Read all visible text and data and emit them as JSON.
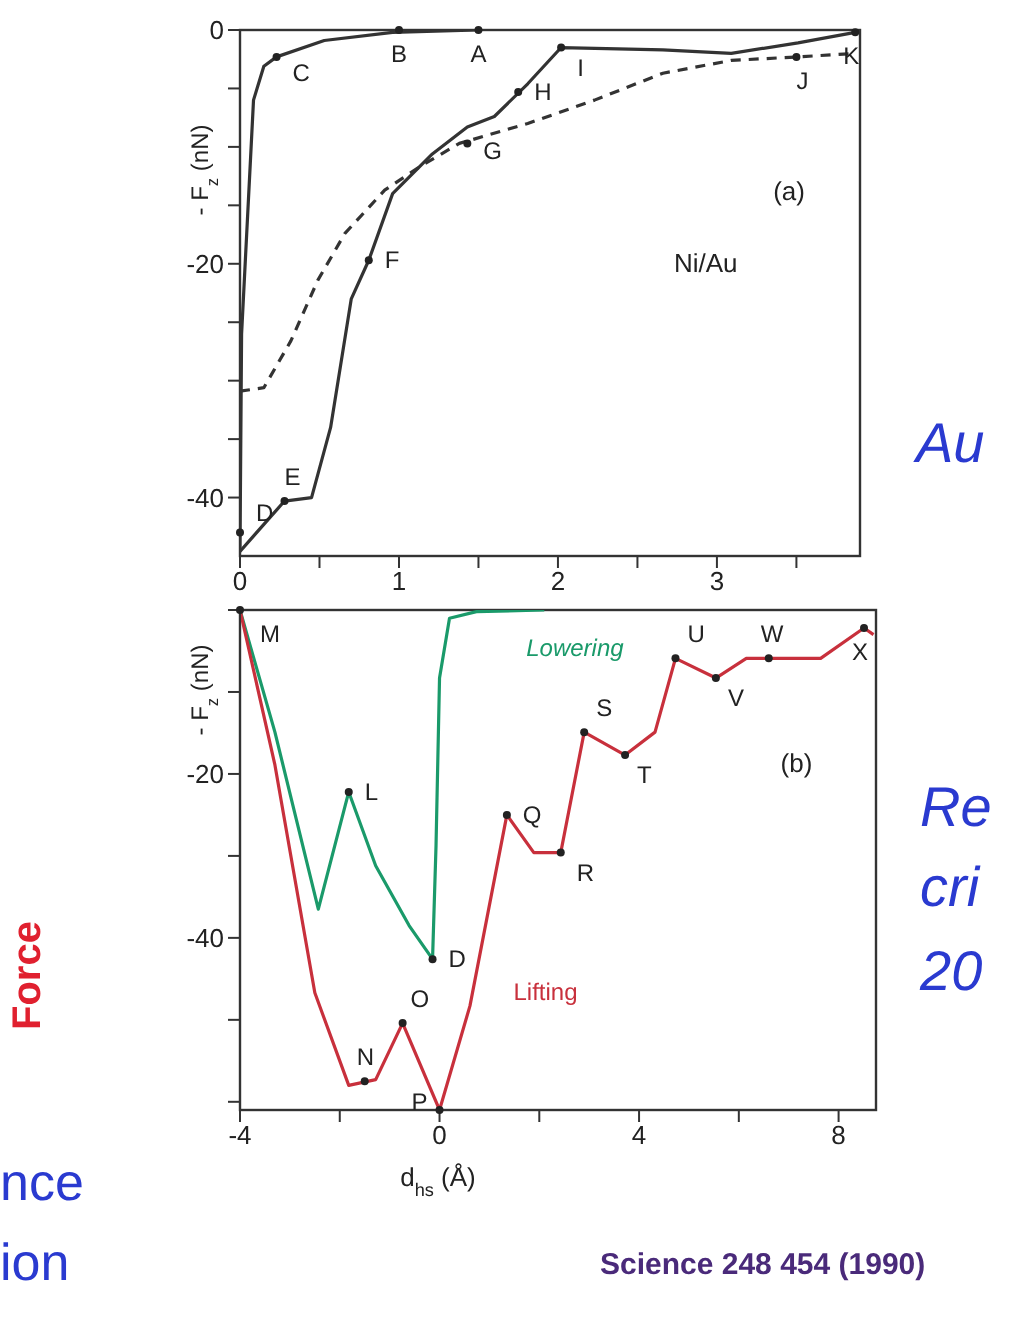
{
  "chart_data": [
    {
      "type": "line",
      "ylabel": "- F$_{z}$ (nN)",
      "xlim": [
        0,
        3.9
      ],
      "xticks": [
        0,
        {
          "value": 0.5,
          "label": null
        },
        1,
        {
          "value": 1.5,
          "label": null
        },
        2,
        {
          "value": 2.5,
          "label": null
        },
        3,
        {
          "value": 3.5,
          "label": null
        }
      ],
      "ylim": [
        -45,
        0
      ],
      "yticks": [
        0,
        {
          "value": -5,
          "label": null
        },
        {
          "value": -10,
          "label": null
        },
        {
          "value": -15,
          "label": null
        },
        -20,
        {
          "value": -25,
          "label": null
        },
        {
          "value": -30,
          "label": null
        },
        {
          "value": -35,
          "label": null
        },
        -40
      ],
      "marker": "none",
      "series": [
        {
          "color": "#333333",
          "line_style": "solid",
          "x": [
            0,
            0.01,
            0.085,
            0.15,
            0.23,
            0.53,
            0.96,
            1.5
          ],
          "values": [
            -44.3,
            -26,
            -6,
            -3.1,
            -2.3,
            -0.9,
            -0.2,
            0
          ]
        },
        {
          "color": "#333333",
          "line_style": "solid",
          "x": [
            0,
            0.28,
            0.45,
            0.57,
            0.7,
            0.81,
            0.96,
            1.21,
            1.43,
            1.6,
            1.81,
            2.02,
            2.66,
            3.09,
            3.51,
            3.87
          ],
          "values": [
            -44.6,
            -40.3,
            -40,
            -34,
            -23,
            -19.7,
            -14,
            -10.6,
            -8.3,
            -7.4,
            -4.6,
            -1.5,
            -1.7,
            -2,
            -1.1,
            -0.2
          ]
        },
        {
          "color": "#333333",
          "line_style": "dashed",
          "x": [
            0,
            0.15,
            0.32,
            0.49,
            0.66,
            0.91,
            1.13,
            1.38,
            1.81,
            2.23,
            2.66,
            3.09,
            3.51,
            3.87
          ],
          "values": [
            -30.9,
            -30.6,
            -26.6,
            -21.4,
            -17.4,
            -13.7,
            -11.7,
            -9.7,
            -8,
            -6,
            -3.7,
            -2.6,
            -2.3,
            -2
          ]
        }
      ],
      "annotations": [
        {
          "text": "A",
          "x": 1.5,
          "y": 0
        },
        {
          "text": "B",
          "x": 1,
          "y": 0
        },
        {
          "text": "C",
          "x": 0.23,
          "y": -2.3
        },
        {
          "text": "D",
          "x": 0,
          "y": -43
        },
        {
          "text": "E",
          "x": 0.28,
          "y": -40.3
        },
        {
          "text": "F",
          "x": 0.81,
          "y": -19.7
        },
        {
          "text": "G",
          "x": 1.43,
          "y": -9.7
        },
        {
          "text": "H",
          "x": 1.75,
          "y": -5.3
        },
        {
          "text": "I",
          "x": 2.02,
          "y": -1.5
        },
        {
          "text": "J",
          "x": 3.5,
          "y": -2.3
        },
        {
          "text": "K",
          "x": 3.87,
          "y": -0.2
        },
        "(a)",
        "Ni/Au",
        "Au"
      ]
    },
    {
      "type": "line",
      "ylabel": "- F$_{z}$ (nN)",
      "xlabel": "d$_{hs}$ (Å)",
      "xlim": [
        -4,
        8.75
      ],
      "xticks": [
        -4,
        {
          "value": -2,
          "label": null
        },
        0,
        {
          "value": 2,
          "label": null
        },
        4,
        {
          "value": 6,
          "label": null
        },
        8
      ],
      "ylim": [
        -61,
        0
      ],
      "yticks": [
        {
          "value": 0,
          "label": null
        },
        {
          "value": -10,
          "label": null
        },
        -20,
        {
          "value": -30,
          "label": null
        },
        -40,
        {
          "value": -50,
          "label": null
        },
        {
          "value": -60,
          "label": null
        }
      ],
      "marker": "none",
      "series": [
        {
          "color": "#1a9a6a",
          "line_style": "solid",
          "x": [
            -4,
            -3.3,
            -2.43,
            -1.82,
            -1.28,
            -0.61,
            -0.14,
            -0.07,
            0,
            0.2,
            0.74,
            2.1
          ],
          "values": [
            0,
            -14.9,
            -36.5,
            -22.2,
            -31.2,
            -38.5,
            -42.6,
            -28.7,
            -8.3,
            -1,
            -0.2,
            0
          ]
        },
        {
          "color": "#c8303c",
          "line_style": "solid",
          "x": [
            -4,
            -3.3,
            -2.5,
            -1.82,
            -1.28,
            -0.74,
            0,
            0.61,
            1.35,
            1.89,
            2.43,
            2.9,
            3.72,
            4.32,
            4.73,
            5.54,
            6.15,
            7.64,
            8.51,
            8.7
          ],
          "values": [
            0,
            -18.9,
            -46.7,
            -58,
            -57.3,
            -50.4,
            -61,
            -48.3,
            -25,
            -29.6,
            -29.6,
            -14.9,
            -17.7,
            -14.9,
            -5.9,
            -8.3,
            -5.9,
            -5.9,
            -2.2,
            -3
          ]
        }
      ],
      "annotations": [
        {
          "text": "M",
          "x": -4,
          "y": 0
        },
        {
          "text": "L",
          "x": -1.82,
          "y": -22.2
        },
        {
          "text": "N",
          "x": -1.5,
          "y": -57.5
        },
        {
          "text": "O",
          "x": -0.74,
          "y": -50.4
        },
        {
          "text": "D",
          "x": -0.14,
          "y": -42.6
        },
        {
          "text": "P",
          "x": 0,
          "y": -61
        },
        {
          "text": "Q",
          "x": 1.35,
          "y": -25
        },
        {
          "text": "R",
          "x": 2.43,
          "y": -29.6
        },
        {
          "text": "S",
          "x": 2.9,
          "y": -14.9
        },
        {
          "text": "T",
          "x": 3.72,
          "y": -17.7
        },
        {
          "text": "U",
          "x": 4.73,
          "y": -5.9
        },
        {
          "text": "V",
          "x": 5.54,
          "y": -8.3
        },
        {
          "text": "W",
          "x": 6.6,
          "y": -5.9
        },
        {
          "text": "X",
          "x": 8.51,
          "y": -2.2
        },
        "(b)",
        "Lowering",
        "Lifting",
        "Force",
        "Science 248 454 (1990)",
        "Re",
        "cri",
        "20",
        "nce",
        "ion"
      ]
    }
  ]
}
